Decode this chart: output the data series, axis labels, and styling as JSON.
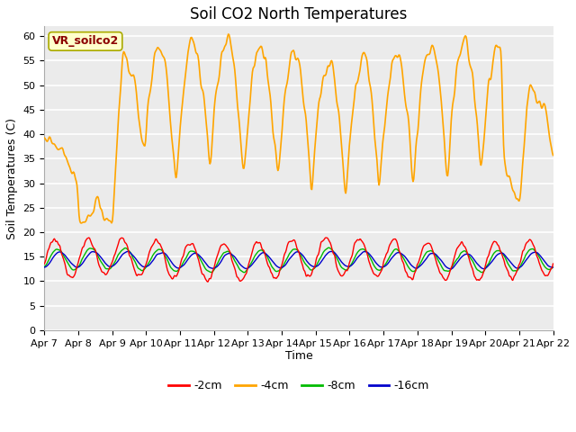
{
  "title": "Soil CO2 North Temperatures",
  "xlabel": "Time",
  "ylabel": "Soil Temperatures (C)",
  "ylim": [
    0,
    62
  ],
  "yticks": [
    0,
    5,
    10,
    15,
    20,
    25,
    30,
    35,
    40,
    45,
    50,
    55,
    60
  ],
  "x_labels": [
    "Apr 7",
    "Apr 8",
    "Apr 9",
    "Apr 10",
    "Apr 11",
    "Apr 12",
    "Apr 13",
    "Apr 14",
    "Apr 15",
    "Apr 16",
    "Apr 17",
    "Apr 18",
    "Apr 19",
    "Apr 20",
    "Apr 21",
    "Apr 22"
  ],
  "annotation_text": "VR_soilco2",
  "annotation_color": "#8B0000",
  "annotation_bg": "#FFFFCC",
  "line_colors": {
    "2cm": "#FF0000",
    "4cm": "#FFA500",
    "8cm": "#00BB00",
    "16cm": "#0000CC"
  },
  "legend_labels": [
    "-2cm",
    "-4cm",
    "-8cm",
    "-16cm"
  ],
  "plot_bg": "#EBEBEB",
  "title_fontsize": 12,
  "axis_fontsize": 9,
  "tick_fontsize": 8
}
